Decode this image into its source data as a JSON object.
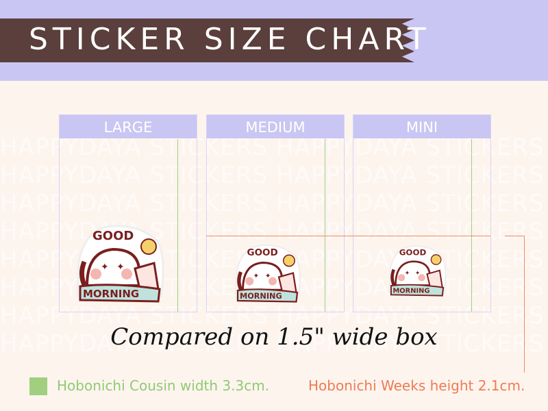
{
  "header": {
    "title": "STICKER SIZE CHART"
  },
  "watermark": "HAPPYDAYA STICKERS",
  "boxes": [
    {
      "label": "LARGE"
    },
    {
      "label": "MEDIUM"
    },
    {
      "label": "MINI"
    }
  ],
  "sticker": {
    "top_text": "GOOD",
    "bottom_text": "MORNING"
  },
  "caption": "Compared on 1.5\" wide box",
  "legend": {
    "green": {
      "text": "Hobonichi Cousin width 3.3cm.",
      "color": "#9fcf7f"
    },
    "orange": {
      "text": "Hobonichi Weeks height 2.1cm.",
      "color": "#ee7b54"
    }
  },
  "colors": {
    "lavender": "#c9c6f3",
    "banner": "#5b3f3c",
    "background": "#fdf4ee"
  }
}
